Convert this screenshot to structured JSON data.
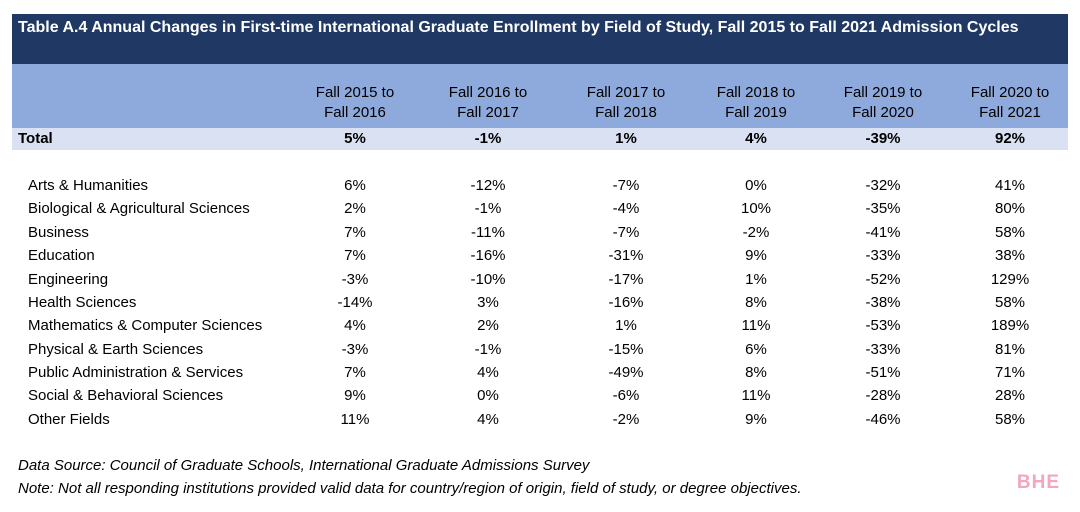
{
  "title": "Table A.4 Annual Changes in First-time International Graduate Enrollment by Field of Study, Fall 2015 to Fall 2021 Admission Cycles",
  "columns": [
    [
      "Fall 2015 to",
      "Fall 2016"
    ],
    [
      "Fall 2016 to",
      "Fall 2017"
    ],
    [
      "Fall 2017 to",
      "Fall 2018"
    ],
    [
      "Fall 2018 to",
      "Fall 2019"
    ],
    [
      "Fall 2019 to",
      "Fall 2020"
    ],
    [
      "Fall 2020 to",
      "Fall 2021"
    ]
  ],
  "total": {
    "label": "Total",
    "values": [
      "5%",
      "-1%",
      "1%",
      "4%",
      "-39%",
      "92%"
    ]
  },
  "rows": [
    {
      "label": "Arts & Humanities",
      "values": [
        "6%",
        "-12%",
        "-7%",
        "0%",
        "-32%",
        "41%"
      ]
    },
    {
      "label": "Biological & Agricultural Sciences",
      "values": [
        "2%",
        "-1%",
        "-4%",
        "10%",
        "-35%",
        "80%"
      ]
    },
    {
      "label": "Business",
      "values": [
        "7%",
        "-11%",
        "-7%",
        "-2%",
        "-41%",
        "58%"
      ]
    },
    {
      "label": "Education",
      "values": [
        "7%",
        "-16%",
        "-31%",
        "9%",
        "-33%",
        "38%"
      ]
    },
    {
      "label": "Engineering",
      "values": [
        "-3%",
        "-10%",
        "-17%",
        "1%",
        "-52%",
        "129%"
      ]
    },
    {
      "label": "Health Sciences",
      "values": [
        "-14%",
        "3%",
        "-16%",
        "8%",
        "-38%",
        "58%"
      ]
    },
    {
      "label": "Mathematics & Computer Sciences",
      "values": [
        "4%",
        "2%",
        "1%",
        "11%",
        "-53%",
        "189%"
      ]
    },
    {
      "label": "Physical & Earth Sciences",
      "values": [
        "-3%",
        "-1%",
        "-15%",
        "6%",
        "-33%",
        "81%"
      ]
    },
    {
      "label": "Public Administration & Services",
      "values": [
        "7%",
        "4%",
        "-49%",
        "8%",
        "-51%",
        "71%"
      ]
    },
    {
      "label": "Social & Behavioral Sciences",
      "values": [
        "9%",
        "0%",
        "-6%",
        "11%",
        "-28%",
        "28%"
      ]
    },
    {
      "label": "Other Fields",
      "values": [
        "11%",
        "4%",
        "-2%",
        "9%",
        "-46%",
        "58%"
      ]
    }
  ],
  "notes": {
    "source": "Data Source: Council of Graduate Schools, International Graduate Admissions Survey",
    "note": "Note: Not all responding institutions provided valid data for country/region of origin, field of study, or degree objectives."
  },
  "logo_text": "BHE"
}
